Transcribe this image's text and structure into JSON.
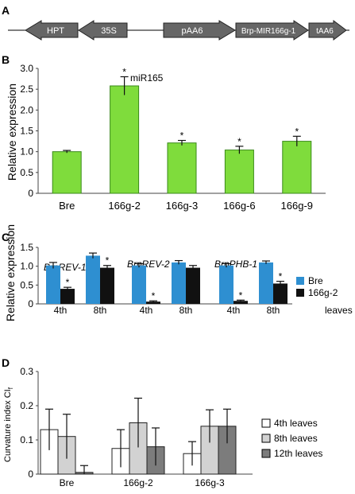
{
  "panels": {
    "A": {
      "label": "A",
      "elements": [
        {
          "text": "HPT",
          "dir": "left",
          "color": "#666666"
        },
        {
          "text": "35S",
          "dir": "left",
          "color": "#666666"
        },
        {
          "text": "pAA6",
          "dir": "right",
          "color": "#666666"
        },
        {
          "text": "Brp-MIR166g-1",
          "dir": "right",
          "color": "#666666"
        },
        {
          "text": "tAA6",
          "dir": "right",
          "color": "#666666"
        }
      ]
    }
  },
  "chart_data": [
    {
      "panel": "B",
      "type": "bar",
      "ylabel": "Relative expression",
      "ylim": [
        0,
        3.0
      ],
      "yticks": [
        "0",
        "0.5",
        "1.0",
        "1.5",
        "2.0",
        "2.5",
        "3.0"
      ],
      "categories": [
        "Bre",
        "166g-2",
        "166g-3",
        "166g-6",
        "166g-9"
      ],
      "series": [
        {
          "name": "miR165",
          "color": "#7fdc3c",
          "values": [
            1.0,
            2.58,
            1.21,
            1.04,
            1.25
          ],
          "errors": [
            0.03,
            0.22,
            0.06,
            0.09,
            0.12
          ],
          "significant": [
            false,
            true,
            true,
            true,
            true
          ]
        }
      ],
      "annotations": [
        "miR165"
      ],
      "star": "*"
    },
    {
      "panel": "C",
      "type": "bar",
      "ylabel": "Relative expression",
      "ylim": [
        0,
        1.5
      ],
      "yticks": [
        "0",
        "0.5",
        "1.0",
        "1.5"
      ],
      "groups": [
        {
          "gene": "BrpREV-1",
          "categories": [
            "4th",
            "8th"
          ]
        },
        {
          "gene": "BrpREV-2",
          "categories": [
            "4th",
            "8th"
          ]
        },
        {
          "gene": "BrpPHB-1",
          "categories": [
            "4th",
            "8th"
          ]
        }
      ],
      "x_suffix": "leaves",
      "series": [
        {
          "name": "Bre",
          "color": "#2e8fd1",
          "values": [
            1.02,
            1.28,
            1.02,
            1.1,
            1.02,
            1.1
          ],
          "errors": [
            0.08,
            0.07,
            0.05,
            0.05,
            0.05,
            0.04
          ],
          "significant": [
            false,
            false,
            false,
            false,
            false,
            false
          ]
        },
        {
          "name": "166g-2",
          "color": "#111111",
          "values": [
            0.4,
            0.96,
            0.06,
            0.96,
            0.08,
            0.54
          ],
          "errors": [
            0.04,
            0.06,
            0.02,
            0.06,
            0.02,
            0.06
          ],
          "significant": [
            true,
            true,
            true,
            false,
            true,
            true
          ]
        }
      ],
      "legend": "right",
      "star": "*"
    },
    {
      "panel": "D",
      "type": "bar",
      "ylabel": "Curvature index CI",
      "ylabel_sub": "f",
      "ylim": [
        0,
        0.3
      ],
      "yticks": [
        "0",
        "0.1",
        "0.2",
        "0.3"
      ],
      "categories": [
        "Bre",
        "166g-2",
        "166g-3"
      ],
      "series": [
        {
          "name": "4th leaves",
          "color": "#ffffff",
          "values": [
            0.13,
            0.075,
            0.06
          ],
          "errors": [
            0.06,
            0.055,
            0.035
          ]
        },
        {
          "name": "8th leaves",
          "color": "#d2d2d2",
          "values": [
            0.11,
            0.15,
            0.14
          ],
          "errors": [
            0.065,
            0.072,
            0.048
          ]
        },
        {
          "name": "12th leaves",
          "color": "#7c7c7c",
          "values": [
            0.005,
            0.08,
            0.14
          ],
          "errors": [
            0.02,
            0.055,
            0.05
          ]
        }
      ],
      "legend": "right"
    }
  ]
}
